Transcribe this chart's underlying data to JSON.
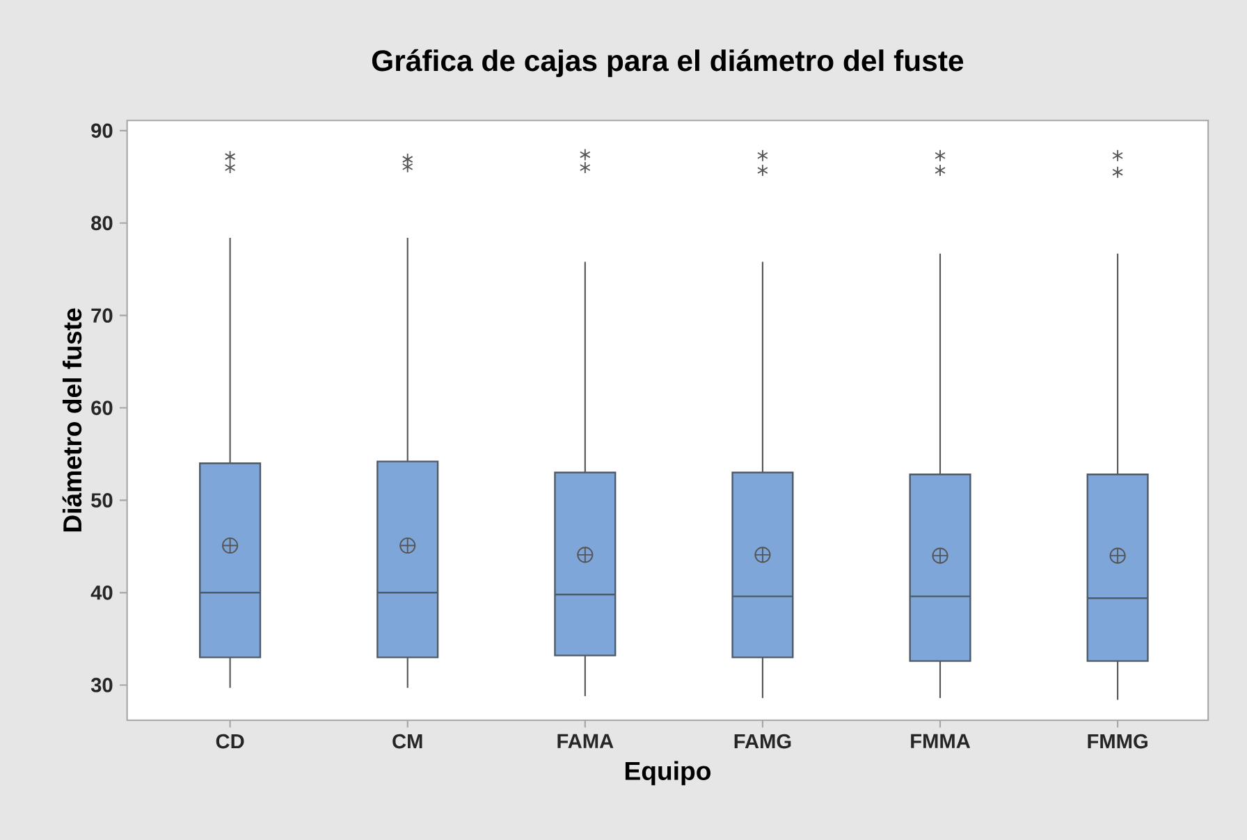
{
  "chart_data": {
    "type": "box",
    "title": "Gráfica de cajas para el diámetro del fuste",
    "xlabel": "Equipo",
    "ylabel": "Diámetro del fuste",
    "categories": [
      "CD",
      "CM",
      "FAMA",
      "FAMG",
      "FMMA",
      "FMMG"
    ],
    "color": "#7ea6d8",
    "boxes": [
      {
        "low": 29.7,
        "q1": 33.0,
        "median": 40.0,
        "q3": 54.0,
        "high": 78.4,
        "mean": 45.1,
        "outliers": [
          87.2,
          86.0
        ]
      },
      {
        "low": 29.7,
        "q1": 33.0,
        "median": 40.0,
        "q3": 54.2,
        "high": 78.4,
        "mean": 45.1,
        "outliers": [
          86.9,
          86.1
        ]
      },
      {
        "low": 28.8,
        "q1": 33.2,
        "median": 39.8,
        "q3": 53.0,
        "high": 75.8,
        "mean": 44.1,
        "outliers": [
          87.4,
          86.0
        ]
      },
      {
        "low": 28.6,
        "q1": 33.0,
        "median": 39.6,
        "q3": 53.0,
        "high": 75.8,
        "mean": 44.1,
        "outliers": [
          87.3,
          85.7
        ]
      },
      {
        "low": 28.6,
        "q1": 32.6,
        "median": 39.6,
        "q3": 52.8,
        "high": 76.7,
        "mean": 44.0,
        "outliers": [
          87.3,
          85.7
        ]
      },
      {
        "low": 28.4,
        "q1": 32.6,
        "median": 39.4,
        "q3": 52.8,
        "high": 76.7,
        "mean": 44.0,
        "outliers": [
          87.3,
          85.5
        ]
      }
    ],
    "ylim": [
      26.2,
      91.1
    ],
    "yticks": [
      30,
      40,
      50,
      60,
      70,
      80,
      90
    ]
  }
}
